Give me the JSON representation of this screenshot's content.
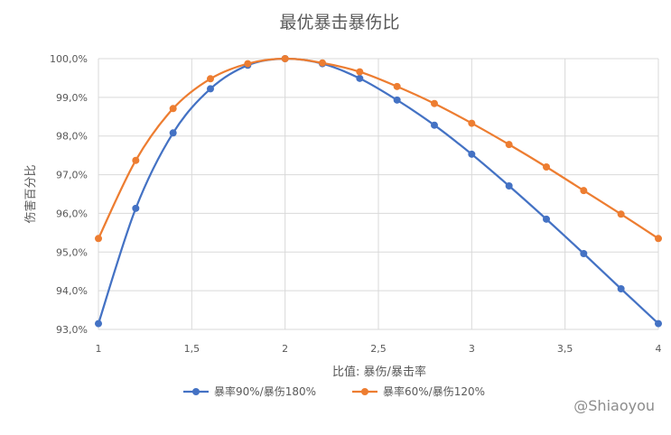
{
  "chart_data": {
    "type": "line",
    "title": "最优暴击暴伤比",
    "xlabel": "比值: 暴伤/暴击率",
    "ylabel": "伤害百分比",
    "xlim": [
      1,
      4
    ],
    "ylim": [
      93,
      100
    ],
    "x_ticks": [
      {
        "value": 1,
        "label": "1"
      },
      {
        "value": 1.5,
        "label": "1,5"
      },
      {
        "value": 2,
        "label": "2"
      },
      {
        "value": 2.5,
        "label": "2,5"
      },
      {
        "value": 3,
        "label": "3"
      },
      {
        "value": 3.5,
        "label": "3,5"
      },
      {
        "value": 4,
        "label": "4"
      }
    ],
    "y_ticks": [
      {
        "value": 93,
        "label": "93,0%"
      },
      {
        "value": 94,
        "label": "94,0%"
      },
      {
        "value": 95,
        "label": "95,0%"
      },
      {
        "value": 96,
        "label": "96,0%"
      },
      {
        "value": 97,
        "label": "97,0%"
      },
      {
        "value": 98,
        "label": "98,0%"
      },
      {
        "value": 99,
        "label": "99,0%"
      },
      {
        "value": 100,
        "label": "100,0%"
      }
    ],
    "grid": "vertical and horizontal",
    "legend_position": "bottom",
    "x": [
      1.0,
      1.2,
      1.4,
      1.6,
      1.8,
      2.0,
      2.2,
      2.4,
      2.6,
      2.8,
      3.0,
      3.2,
      3.4,
      3.6,
      3.8,
      4.0
    ],
    "series": [
      {
        "name": "暴率90%/暴伤180%",
        "color": "#4472c4",
        "values": [
          93.15,
          96.13,
          98.08,
          99.22,
          99.83,
          100.0,
          99.87,
          99.49,
          98.93,
          98.28,
          97.53,
          96.71,
          95.85,
          94.96,
          94.05,
          93.15
        ]
      },
      {
        "name": "暴率60%/暴伤120%",
        "color": "#ed7d31",
        "values": [
          95.35,
          97.37,
          98.71,
          99.48,
          99.87,
          100.0,
          99.89,
          99.66,
          99.28,
          98.84,
          98.33,
          97.78,
          97.2,
          96.59,
          95.98,
          95.35
        ]
      }
    ]
  },
  "watermark": "@Shiaoyou"
}
